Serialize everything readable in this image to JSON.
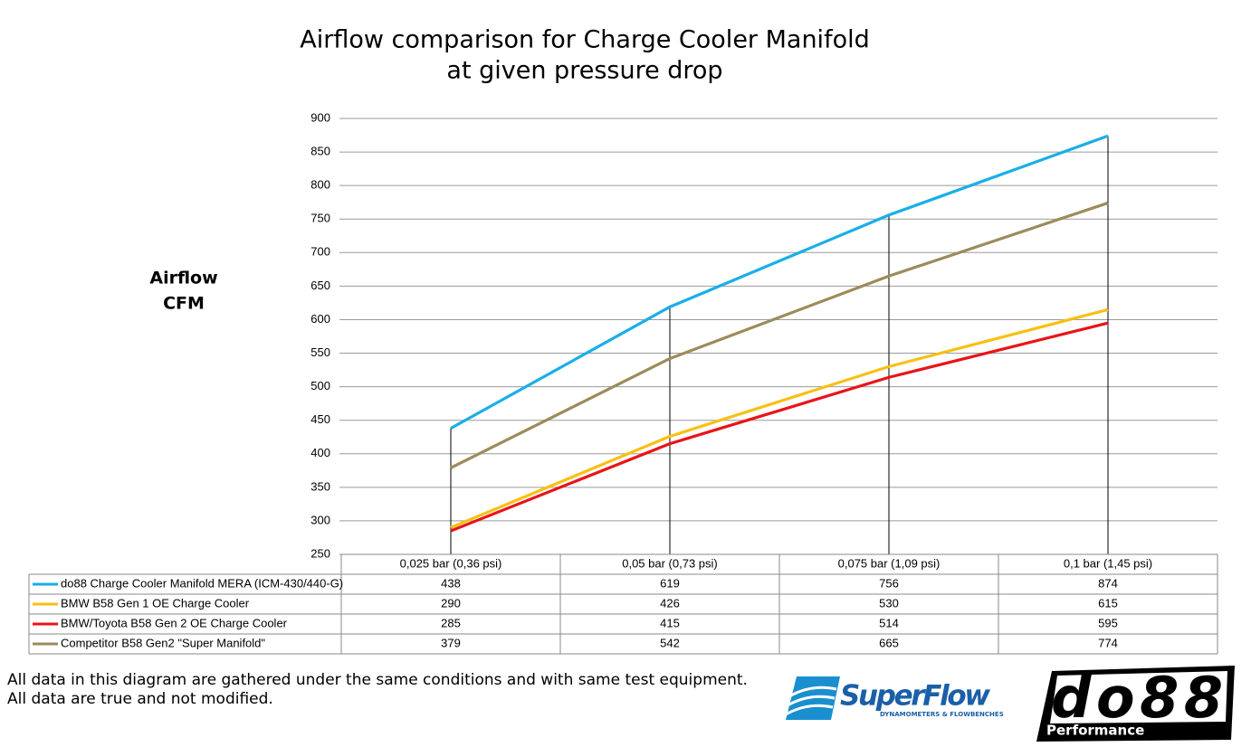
{
  "chart_data": {
    "type": "line",
    "title": [
      "Airflow comparison for Charge Cooler Manifold",
      "at given pressure drop"
    ],
    "ylabel": [
      "Airflow",
      "CFM"
    ],
    "categories": [
      "0,025 bar (0,36 psi)",
      "0,05 bar (0,73 psi)",
      "0,075 bar (1,09 psi)",
      "0,1 bar (1,45 psi)"
    ],
    "series": [
      {
        "name": "do88 Charge Cooler Manifold MERA (ICM-430/440-G)",
        "color": "#1aaee8",
        "values": [
          438,
          619,
          756,
          874
        ]
      },
      {
        "name": "BMW B58 Gen 1 OE Charge Cooler",
        "color": "#f8c012",
        "values": [
          290,
          426,
          530,
          615
        ]
      },
      {
        "name": "BMW/Toyota B58 Gen 2 OE Charge Cooler",
        "color": "#e81418",
        "values": [
          285,
          415,
          514,
          595
        ]
      },
      {
        "name": "Competitor B58 Gen2 \"Super Manifold\"",
        "color": "#9c8c5a",
        "values": [
          379,
          542,
          665,
          774
        ]
      }
    ],
    "ylim": [
      250,
      900
    ],
    "yticks": [
      250,
      300,
      350,
      400,
      450,
      500,
      550,
      600,
      650,
      700,
      750,
      800,
      850,
      900
    ],
    "grid": true,
    "drop_lines": true
  },
  "notes": [
    "All data in this diagram are gathered under the same conditions and with same test equipment.",
    "All data are true and not modified."
  ],
  "logos": {
    "superflow": "SuperFlow",
    "superflow_tagline": "DYNAMOMETERS & FLOWBENCHES",
    "do88": "do88",
    "do88_tagline": "Performance"
  }
}
